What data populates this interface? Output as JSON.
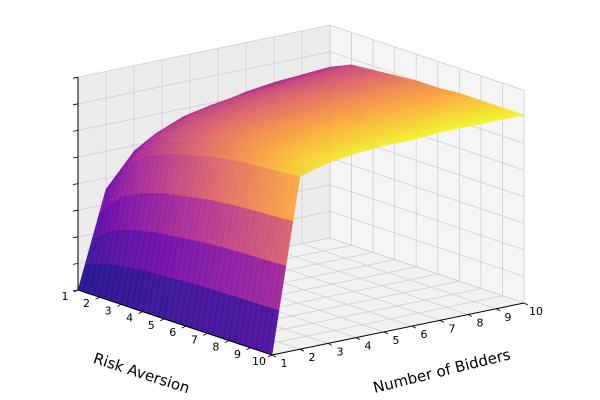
{
  "chart_data": {
    "type": "surface",
    "title": "",
    "xlabel": "Risk Aversion",
    "ylabel": "Number of Bidders",
    "zlabel": "",
    "x_ticks": [
      "1",
      "2",
      "3",
      "4",
      "5",
      "6",
      "7",
      "8",
      "9",
      "10"
    ],
    "y_ticks": [
      "1",
      "2",
      "3",
      "4",
      "5",
      "6",
      "7",
      "8",
      "9",
      "10"
    ],
    "z_tick_labels_shown": false,
    "xlim": [
      1,
      10
    ],
    "ylim": [
      1,
      10
    ],
    "zlim": [
      0,
      1
    ],
    "grid": true,
    "colormap": "plasma-like (blue to yellow)",
    "x": [
      1,
      2,
      3,
      4,
      5,
      6,
      7,
      8,
      9,
      10
    ],
    "y": [
      1,
      2,
      3,
      4,
      5,
      6,
      7,
      8,
      9,
      10
    ],
    "z": [
      [
        0.0,
        0.5,
        0.67,
        0.75,
        0.8,
        0.83,
        0.86,
        0.88,
        0.89,
        0.9
      ],
      [
        0.0,
        0.67,
        0.8,
        0.86,
        0.89,
        0.91,
        0.92,
        0.93,
        0.94,
        0.95
      ],
      [
        0.0,
        0.75,
        0.86,
        0.9,
        0.92,
        0.94,
        0.95,
        0.95,
        0.96,
        0.96
      ],
      [
        0.0,
        0.8,
        0.89,
        0.92,
        0.94,
        0.95,
        0.96,
        0.96,
        0.97,
        0.97
      ],
      [
        0.0,
        0.83,
        0.91,
        0.94,
        0.95,
        0.96,
        0.97,
        0.97,
        0.98,
        0.98
      ],
      [
        0.0,
        0.86,
        0.92,
        0.95,
        0.96,
        0.97,
        0.97,
        0.98,
        0.98,
        0.98
      ],
      [
        0.0,
        0.88,
        0.93,
        0.95,
        0.97,
        0.97,
        0.98,
        0.98,
        0.98,
        0.99
      ],
      [
        0.0,
        0.89,
        0.94,
        0.96,
        0.97,
        0.98,
        0.98,
        0.98,
        0.99,
        0.99
      ],
      [
        0.0,
        0.9,
        0.95,
        0.96,
        0.97,
        0.98,
        0.98,
        0.99,
        0.99,
        0.99
      ],
      [
        0.0,
        0.91,
        0.95,
        0.97,
        0.98,
        0.98,
        0.99,
        0.99,
        0.99,
        0.99
      ]
    ],
    "z_rows_index": "risk aversion (x)",
    "z_cols_index": "number of bidders (y)"
  }
}
